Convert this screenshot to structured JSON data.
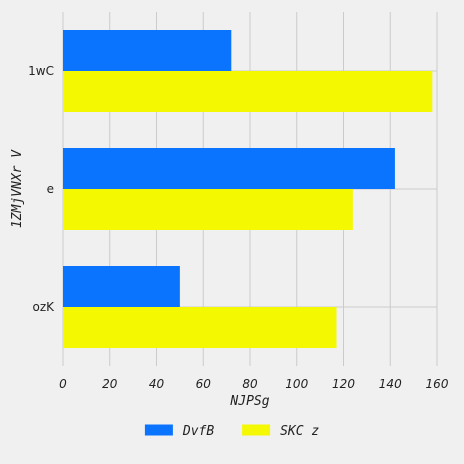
{
  "chart_data": {
    "type": "bar",
    "orientation": "horizontal",
    "categories": [
      "ozK",
      "e",
      "1wC"
    ],
    "series": [
      {
        "name": "DvfB",
        "color": "#0a74ff",
        "values": [
          50,
          142,
          72
        ]
      },
      {
        "name": "SKC z",
        "color": "#f4f800",
        "values": [
          117,
          124,
          158
        ]
      }
    ],
    "xlabel": "NJPSg",
    "ylabel": "1ZMjVNXr V",
    "xlim": [
      0,
      160
    ],
    "xticks": [
      0,
      20,
      40,
      60,
      80,
      100,
      120,
      140,
      160
    ],
    "grid": true,
    "legend_position": "bottom-center",
    "background": "#f0f0f0"
  }
}
